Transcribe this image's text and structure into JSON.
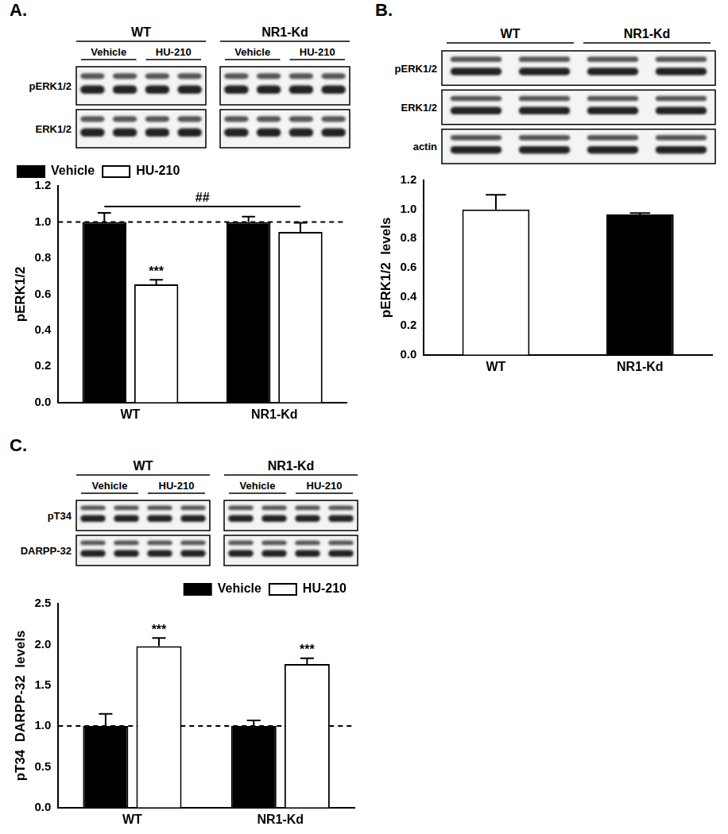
{
  "chart_data": [
    {
      "panel": "A.",
      "type": "bar",
      "blot": {
        "groups": [
          "WT",
          "NR1-Kd"
        ],
        "conditions": [
          "Vehicle",
          "HU-210"
        ],
        "rows": [
          "pERK1/2",
          "ERK1/2"
        ]
      },
      "categories": [
        "WT",
        "NR1-Kd"
      ],
      "series": [
        {
          "name": "Vehicle",
          "color": "#000000",
          "values": [
            1.0,
            1.0
          ],
          "errors": [
            0.05,
            0.03
          ]
        },
        {
          "name": "HU-210",
          "color": "#ffffff",
          "values": [
            0.655,
            0.945
          ],
          "errors": [
            0.025,
            0.05
          ]
        }
      ],
      "y_label": "pERK1/2",
      "ylim": [
        0,
        1.2
      ],
      "yticks": [
        {
          "value": 0,
          "label": "0.0"
        },
        0.2,
        0.4,
        0.6,
        0.8,
        {
          "value": 1,
          "label": "1.0"
        },
        1.2
      ],
      "grid": false,
      "legend": "top-left",
      "reference_line": 1,
      "annotations": [
        {
          "text": "***",
          "series": 1,
          "category": 0
        }
      ],
      "brackets": [
        {
          "text": "##",
          "from": {
            "series": 0,
            "category": 0
          },
          "to": {
            "series": 1,
            "category": 1
          }
        }
      ]
    },
    {
      "panel": "B.",
      "type": "bar",
      "blot": {
        "groups": [
          "WT",
          "NR1-Kd"
        ],
        "rows": [
          "pERK1/2",
          "ERK1/2",
          "actin"
        ]
      },
      "categories": [
        "WT",
        "NR1-Kd"
      ],
      "values": [
        1.0,
        0.965
      ],
      "errors": [
        0.1,
        0.01
      ],
      "colors": [
        "#ffffff",
        "#000000"
      ],
      "y_label": "pERK1/2  levels",
      "ylim": [
        0,
        1.2
      ],
      "yticks": [
        {
          "value": 0,
          "label": "0.0"
        },
        0.2,
        0.4,
        0.6,
        0.8,
        {
          "value": 1,
          "label": "1.0"
        },
        1.2
      ],
      "grid": false
    },
    {
      "panel": "C.",
      "type": "bar",
      "blot": {
        "groups": [
          "WT",
          "NR1-Kd"
        ],
        "conditions": [
          "Vehicle",
          "HU-210"
        ],
        "rows": [
          "pT34",
          "DARPP-32"
        ]
      },
      "categories": [
        "WT",
        "NR1-Kd"
      ],
      "series": [
        {
          "name": "Vehicle",
          "color": "#000000",
          "values": [
            1.0,
            1.0
          ],
          "errors": [
            0.15,
            0.07
          ]
        },
        {
          "name": "HU-210",
          "color": "#ffffff",
          "values": [
            1.98,
            1.76
          ],
          "errors": [
            0.1,
            0.07
          ]
        }
      ],
      "y_label": "pT34  DARPP-32  levels",
      "ylim": [
        0,
        2.5
      ],
      "yticks": [
        {
          "value": 0,
          "label": "0.0"
        },
        0.5,
        {
          "value": 1,
          "label": "1.0"
        },
        1.5,
        {
          "value": 2,
          "label": "2.0"
        },
        2.5
      ],
      "grid": false,
      "legend": "top-right",
      "reference_line": 1,
      "annotations": [
        {
          "text": "***",
          "series": 1,
          "category": 0
        },
        {
          "text": "***",
          "series": 1,
          "category": 1
        }
      ]
    }
  ]
}
